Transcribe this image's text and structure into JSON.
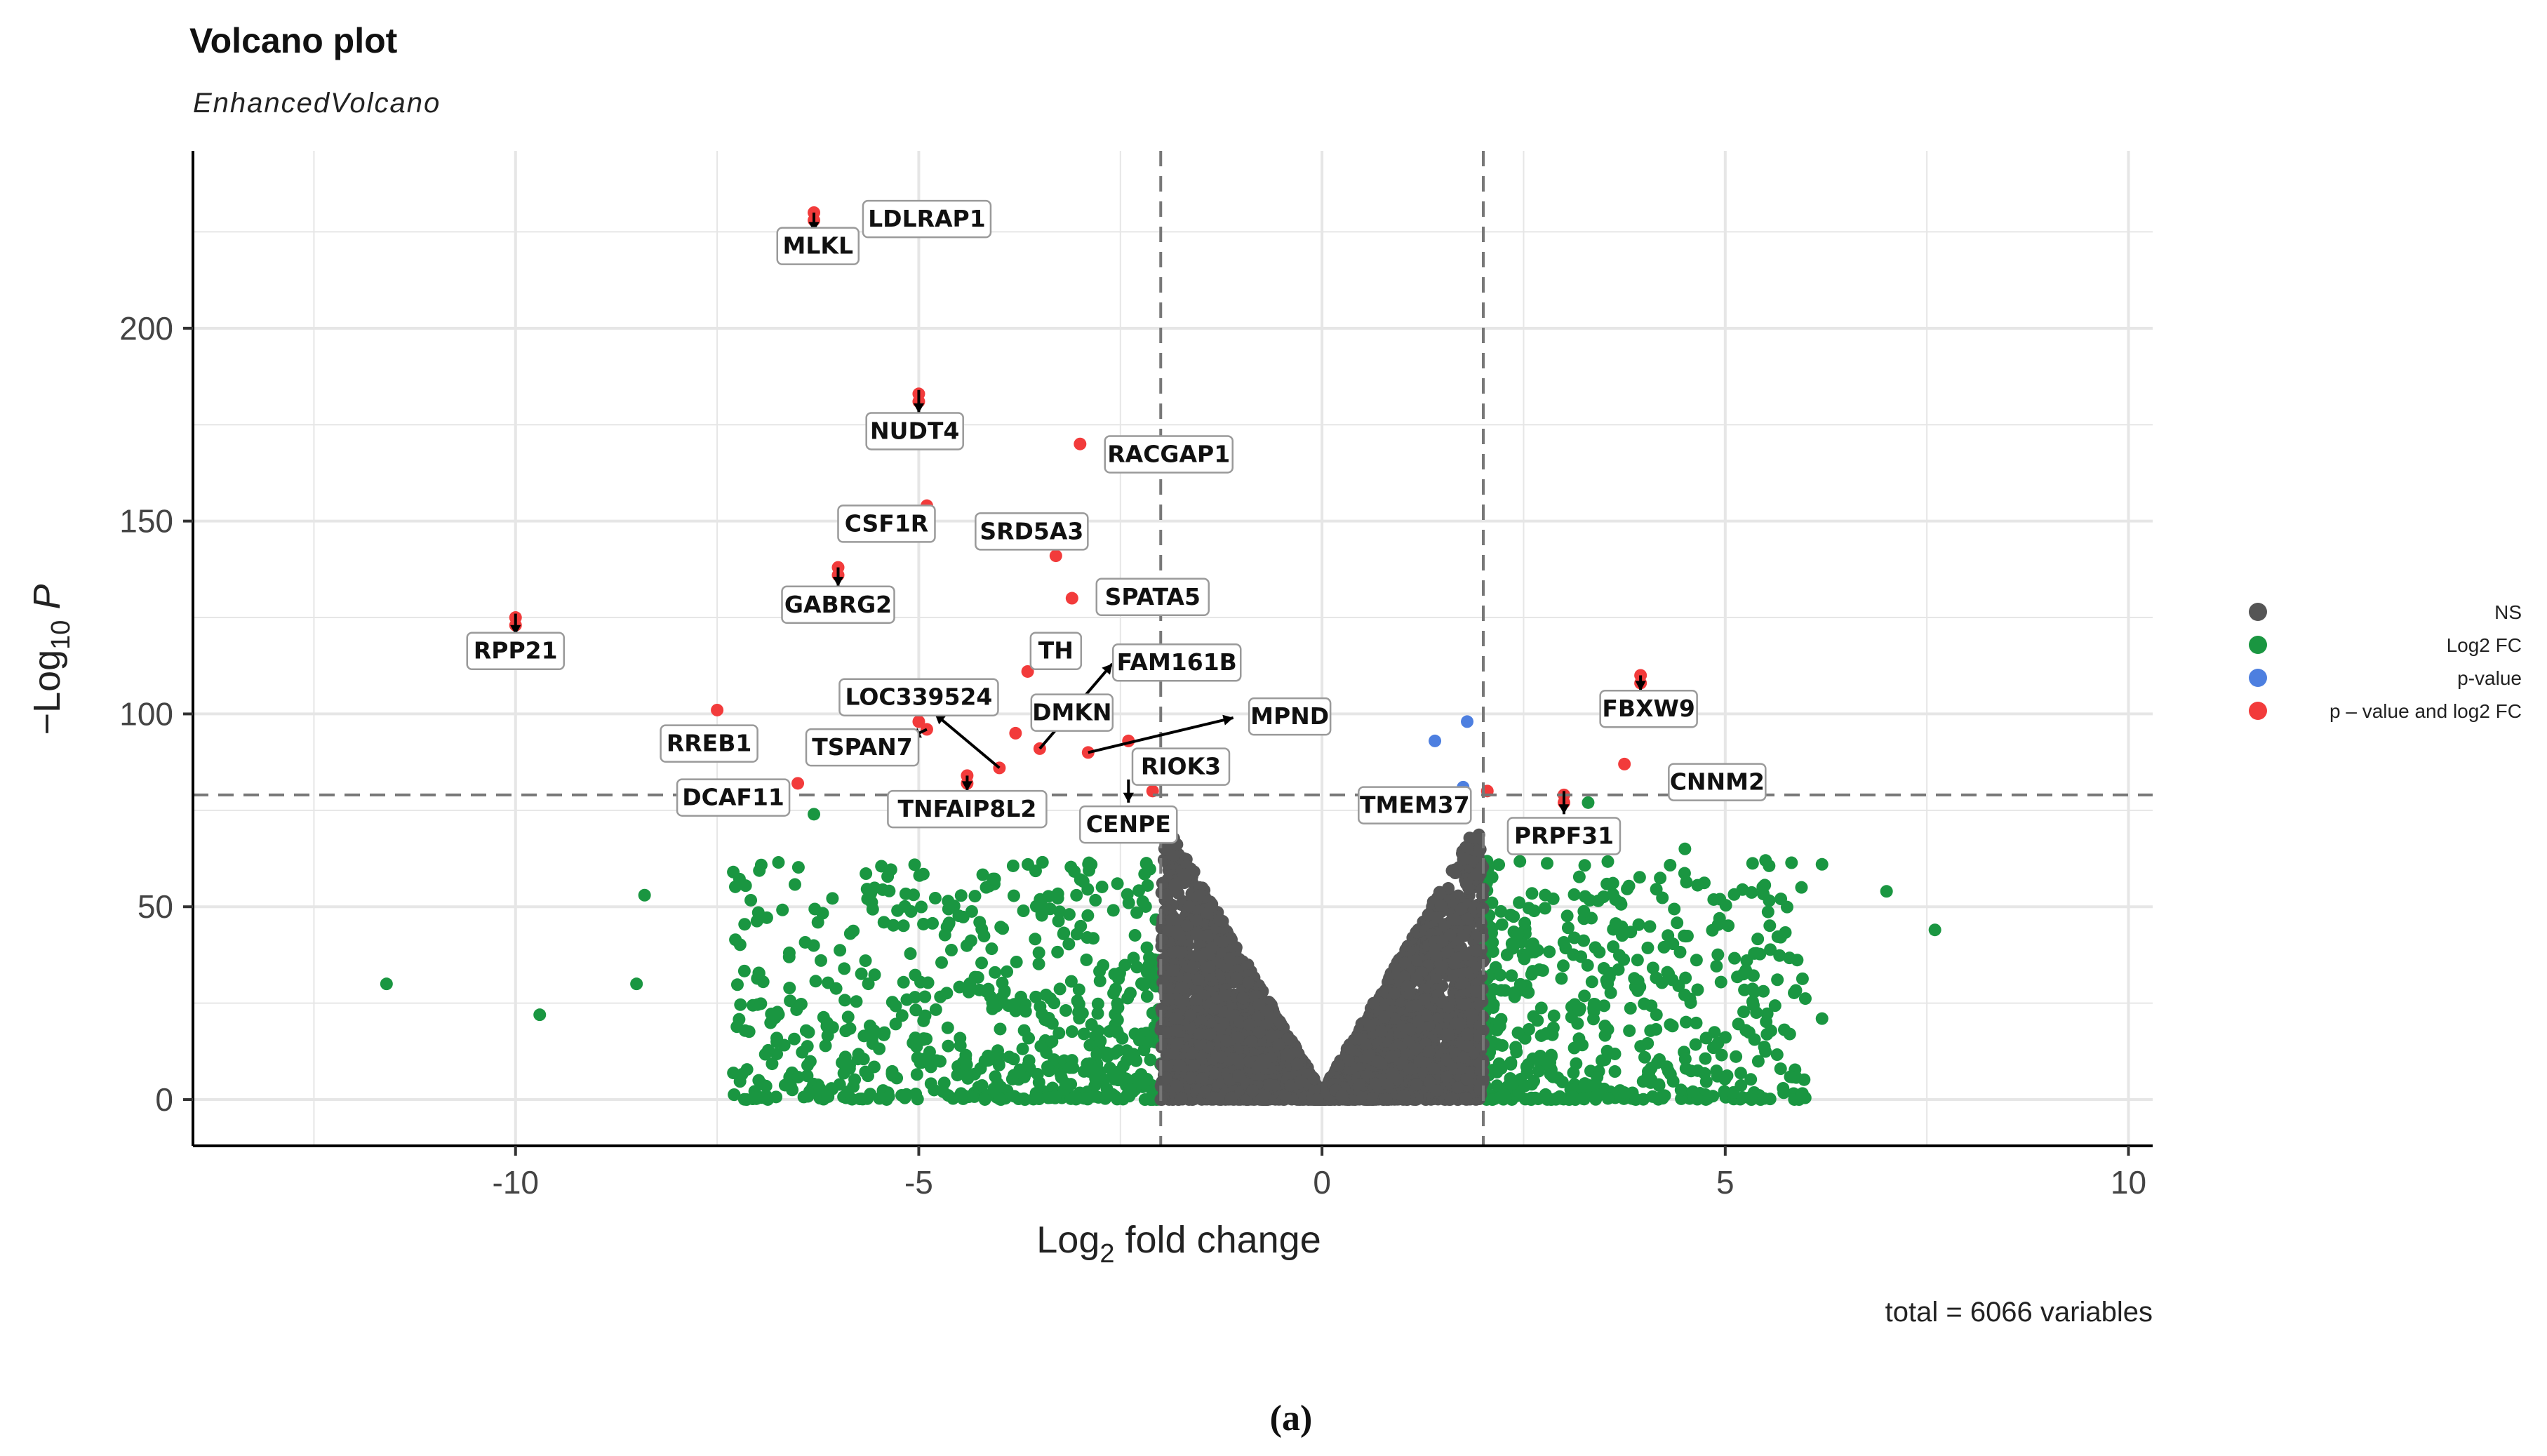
{
  "chart_data": {
    "type": "scatter",
    "title": "Volcano plot",
    "subtitle": "EnhancedVolcano",
    "xlabel": "Log2 fold change",
    "ylabel": "-Log10 P",
    "xlim": [
      -14,
      10.3
    ],
    "ylim": [
      -12,
      246
    ],
    "xticks": [
      -10,
      -5,
      0,
      5,
      10
    ],
    "yticks": [
      0,
      50,
      100,
      150,
      200
    ],
    "xtick_labels": [
      "-10",
      "-5",
      "0",
      "5",
      "10"
    ],
    "ytick_labels": [
      "0",
      "50",
      "100",
      "150",
      "200"
    ],
    "fc_cutoff": 2,
    "p_cutoff_line": 79,
    "grid": true,
    "legend_position": "right",
    "legend": [
      {
        "key": "NS",
        "label": "NS",
        "color": "#555555"
      },
      {
        "key": "FC",
        "label": "Log2 FC",
        "color": "#1a9641"
      },
      {
        "key": "P",
        "label": "p-value",
        "color": "#4d7fe0"
      },
      {
        "key": "FCP",
        "label": "p – value and log2 FC",
        "color": "#f23b3b"
      }
    ],
    "caption": "total = 6066 variables",
    "labeled_genes": [
      {
        "name": "MLKL",
        "x": -6.3,
        "y": 230,
        "category": "FCP"
      },
      {
        "name": "LDLRAP1",
        "x": -5.5,
        "y": 231,
        "category": "FCP"
      },
      {
        "name": "NUDT4",
        "x": -5.0,
        "y": 183,
        "category": "FCP"
      },
      {
        "name": "RACGAP1",
        "x": -3.0,
        "y": 170,
        "category": "FCP"
      },
      {
        "name": "CSF1R",
        "x": -4.9,
        "y": 154,
        "category": "FCP"
      },
      {
        "name": "SRD5A3",
        "x": -3.3,
        "y": 141,
        "category": "FCP"
      },
      {
        "name": "GABRG2",
        "x": -6.0,
        "y": 138,
        "category": "FCP"
      },
      {
        "name": "SPATA5",
        "x": -3.1,
        "y": 130,
        "category": "FCP"
      },
      {
        "name": "RPP21",
        "x": -10.0,
        "y": 125,
        "category": "FCP"
      },
      {
        "name": "TH",
        "x": -3.65,
        "y": 111,
        "category": "FCP"
      },
      {
        "name": "FAM161B",
        "x": -3.5,
        "y": 91,
        "category": "FCP"
      },
      {
        "name": "LOC339524",
        "x": -4.0,
        "y": 86,
        "category": "FCP"
      },
      {
        "name": "DMKN",
        "x": -3.8,
        "y": 95,
        "category": "FCP"
      },
      {
        "name": "MPND",
        "x": -2.9,
        "y": 90,
        "category": "FCP"
      },
      {
        "name": "RREB1",
        "x": -7.5,
        "y": 101,
        "category": "FCP"
      },
      {
        "name": "TSPAN7",
        "x": -5.0,
        "y": 98,
        "category": "FCP"
      },
      {
        "name": "RIOK3",
        "x": -2.4,
        "y": 93,
        "category": "FCP"
      },
      {
        "name": "DCAF11",
        "x": -6.5,
        "y": 82,
        "category": "FCP"
      },
      {
        "name": "TNFAIP8L2",
        "x": -4.4,
        "y": 84,
        "category": "FCP"
      },
      {
        "name": "CENPE",
        "x": -2.1,
        "y": 80,
        "category": "FCP"
      },
      {
        "name": "TMEM37",
        "x": 2.05,
        "y": 80,
        "category": "FCP"
      },
      {
        "name": "FBXW9",
        "x": 3.95,
        "y": 110,
        "category": "FCP"
      },
      {
        "name": "CNNM2",
        "x": 3.75,
        "y": 87,
        "category": "FCP"
      },
      {
        "name": "PRPF31",
        "x": 3.0,
        "y": 79,
        "category": "FCP"
      }
    ],
    "highlight_points": [
      {
        "x": -6.3,
        "y": 228,
        "category": "FCP"
      },
      {
        "x": -5.0,
        "y": 181,
        "category": "FCP"
      },
      {
        "x": -6.0,
        "y": 136,
        "category": "FCP"
      },
      {
        "x": -10.0,
        "y": 123,
        "category": "FCP"
      },
      {
        "x": -4.9,
        "y": 96,
        "category": "FCP"
      },
      {
        "x": -4.4,
        "y": 82,
        "category": "FCP"
      },
      {
        "x": 3.95,
        "y": 108,
        "category": "FCP"
      },
      {
        "x": 3.0,
        "y": 77,
        "category": "FCP"
      },
      {
        "x": 1.8,
        "y": 98,
        "category": "P"
      },
      {
        "x": 1.4,
        "y": 93,
        "category": "P"
      },
      {
        "x": 1.75,
        "y": 81,
        "category": "P"
      },
      {
        "x": -11.6,
        "y": 30,
        "category": "FC"
      },
      {
        "x": -9.7,
        "y": 22,
        "category": "FC"
      },
      {
        "x": -8.5,
        "y": 30,
        "category": "FC"
      },
      {
        "x": -8.4,
        "y": 53,
        "category": "FC"
      },
      {
        "x": -7.3,
        "y": 59,
        "category": "FC"
      },
      {
        "x": -6.3,
        "y": 74,
        "category": "FC"
      },
      {
        "x": 7.0,
        "y": 54,
        "category": "FC"
      },
      {
        "x": 7.6,
        "y": 44,
        "category": "FC"
      },
      {
        "x": 6.2,
        "y": 61,
        "category": "FC"
      },
      {
        "x": 6.2,
        "y": 21,
        "category": "FC"
      },
      {
        "x": 5.8,
        "y": 17,
        "category": "FC"
      },
      {
        "x": 5.5,
        "y": 62,
        "category": "FC"
      },
      {
        "x": 4.5,
        "y": 65,
        "category": "FC"
      },
      {
        "x": 3.3,
        "y": 77,
        "category": "FC"
      }
    ],
    "bulk_clouds": [
      {
        "category": "FC",
        "xmin": -7.3,
        "xmax": -2.0,
        "count": 620,
        "seed": 11
      },
      {
        "category": "FC",
        "xmin": 2.0,
        "xmax": 6.0,
        "count": 520,
        "seed": 23
      },
      {
        "category": "NS",
        "xmin": -2.0,
        "xmax": 2.0,
        "count": 4200,
        "seed": 37
      }
    ]
  },
  "panel_label": "(a)"
}
